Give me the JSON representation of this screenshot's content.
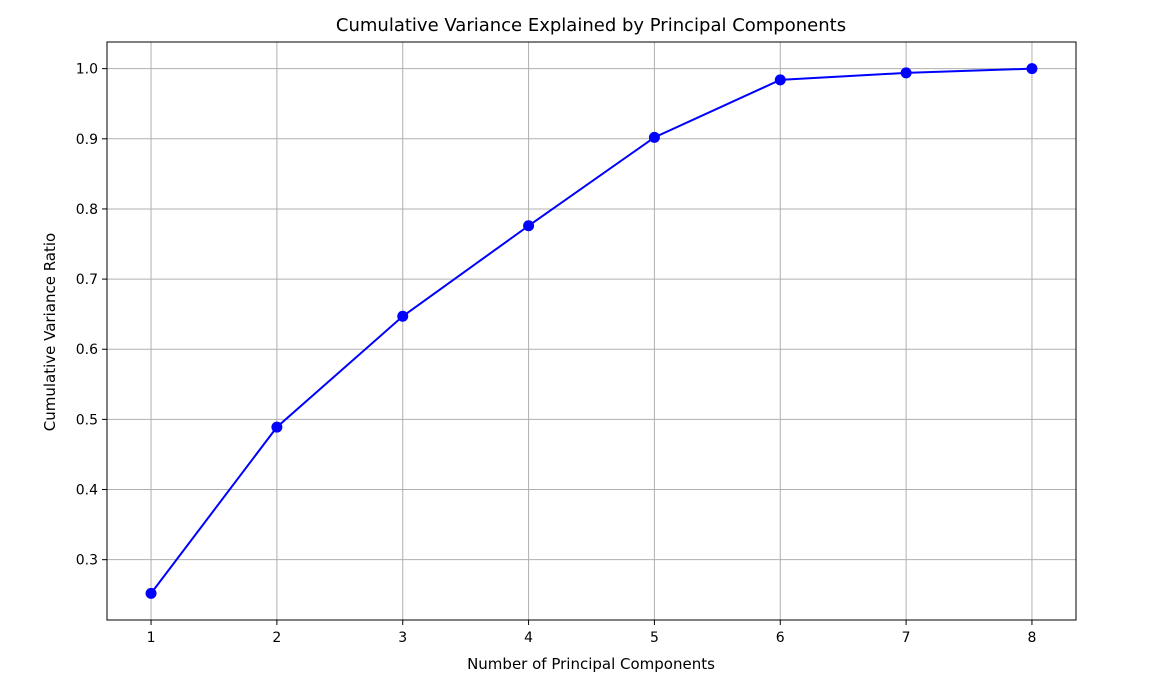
{
  "chart_data": {
    "type": "line",
    "title": "Cumulative Variance Explained by Principal Components",
    "xlabel": "Number of Principal Components",
    "ylabel": "Cumulative Variance Ratio",
    "x": [
      1,
      2,
      3,
      4,
      5,
      6,
      7,
      8
    ],
    "series": [
      {
        "values": [
          0.252,
          0.489,
          0.647,
          0.776,
          0.902,
          0.984,
          0.994,
          1.0
        ],
        "color": "#0000ff",
        "marker": "circle"
      }
    ],
    "xlim": [
      0.65,
      8.35
    ],
    "ylim": [
      0.214,
      1.038
    ],
    "xticks": [
      "1",
      "2",
      "3",
      "4",
      "5",
      "6",
      "7",
      "8"
    ],
    "yticks": [
      "0.3",
      "0.4",
      "0.5",
      "0.6",
      "0.7",
      "0.8",
      "0.9",
      "1.0"
    ],
    "ytick_values": [
      0.3,
      0.4,
      0.5,
      0.6,
      0.7,
      0.8,
      0.9,
      1.0
    ],
    "grid": true
  }
}
